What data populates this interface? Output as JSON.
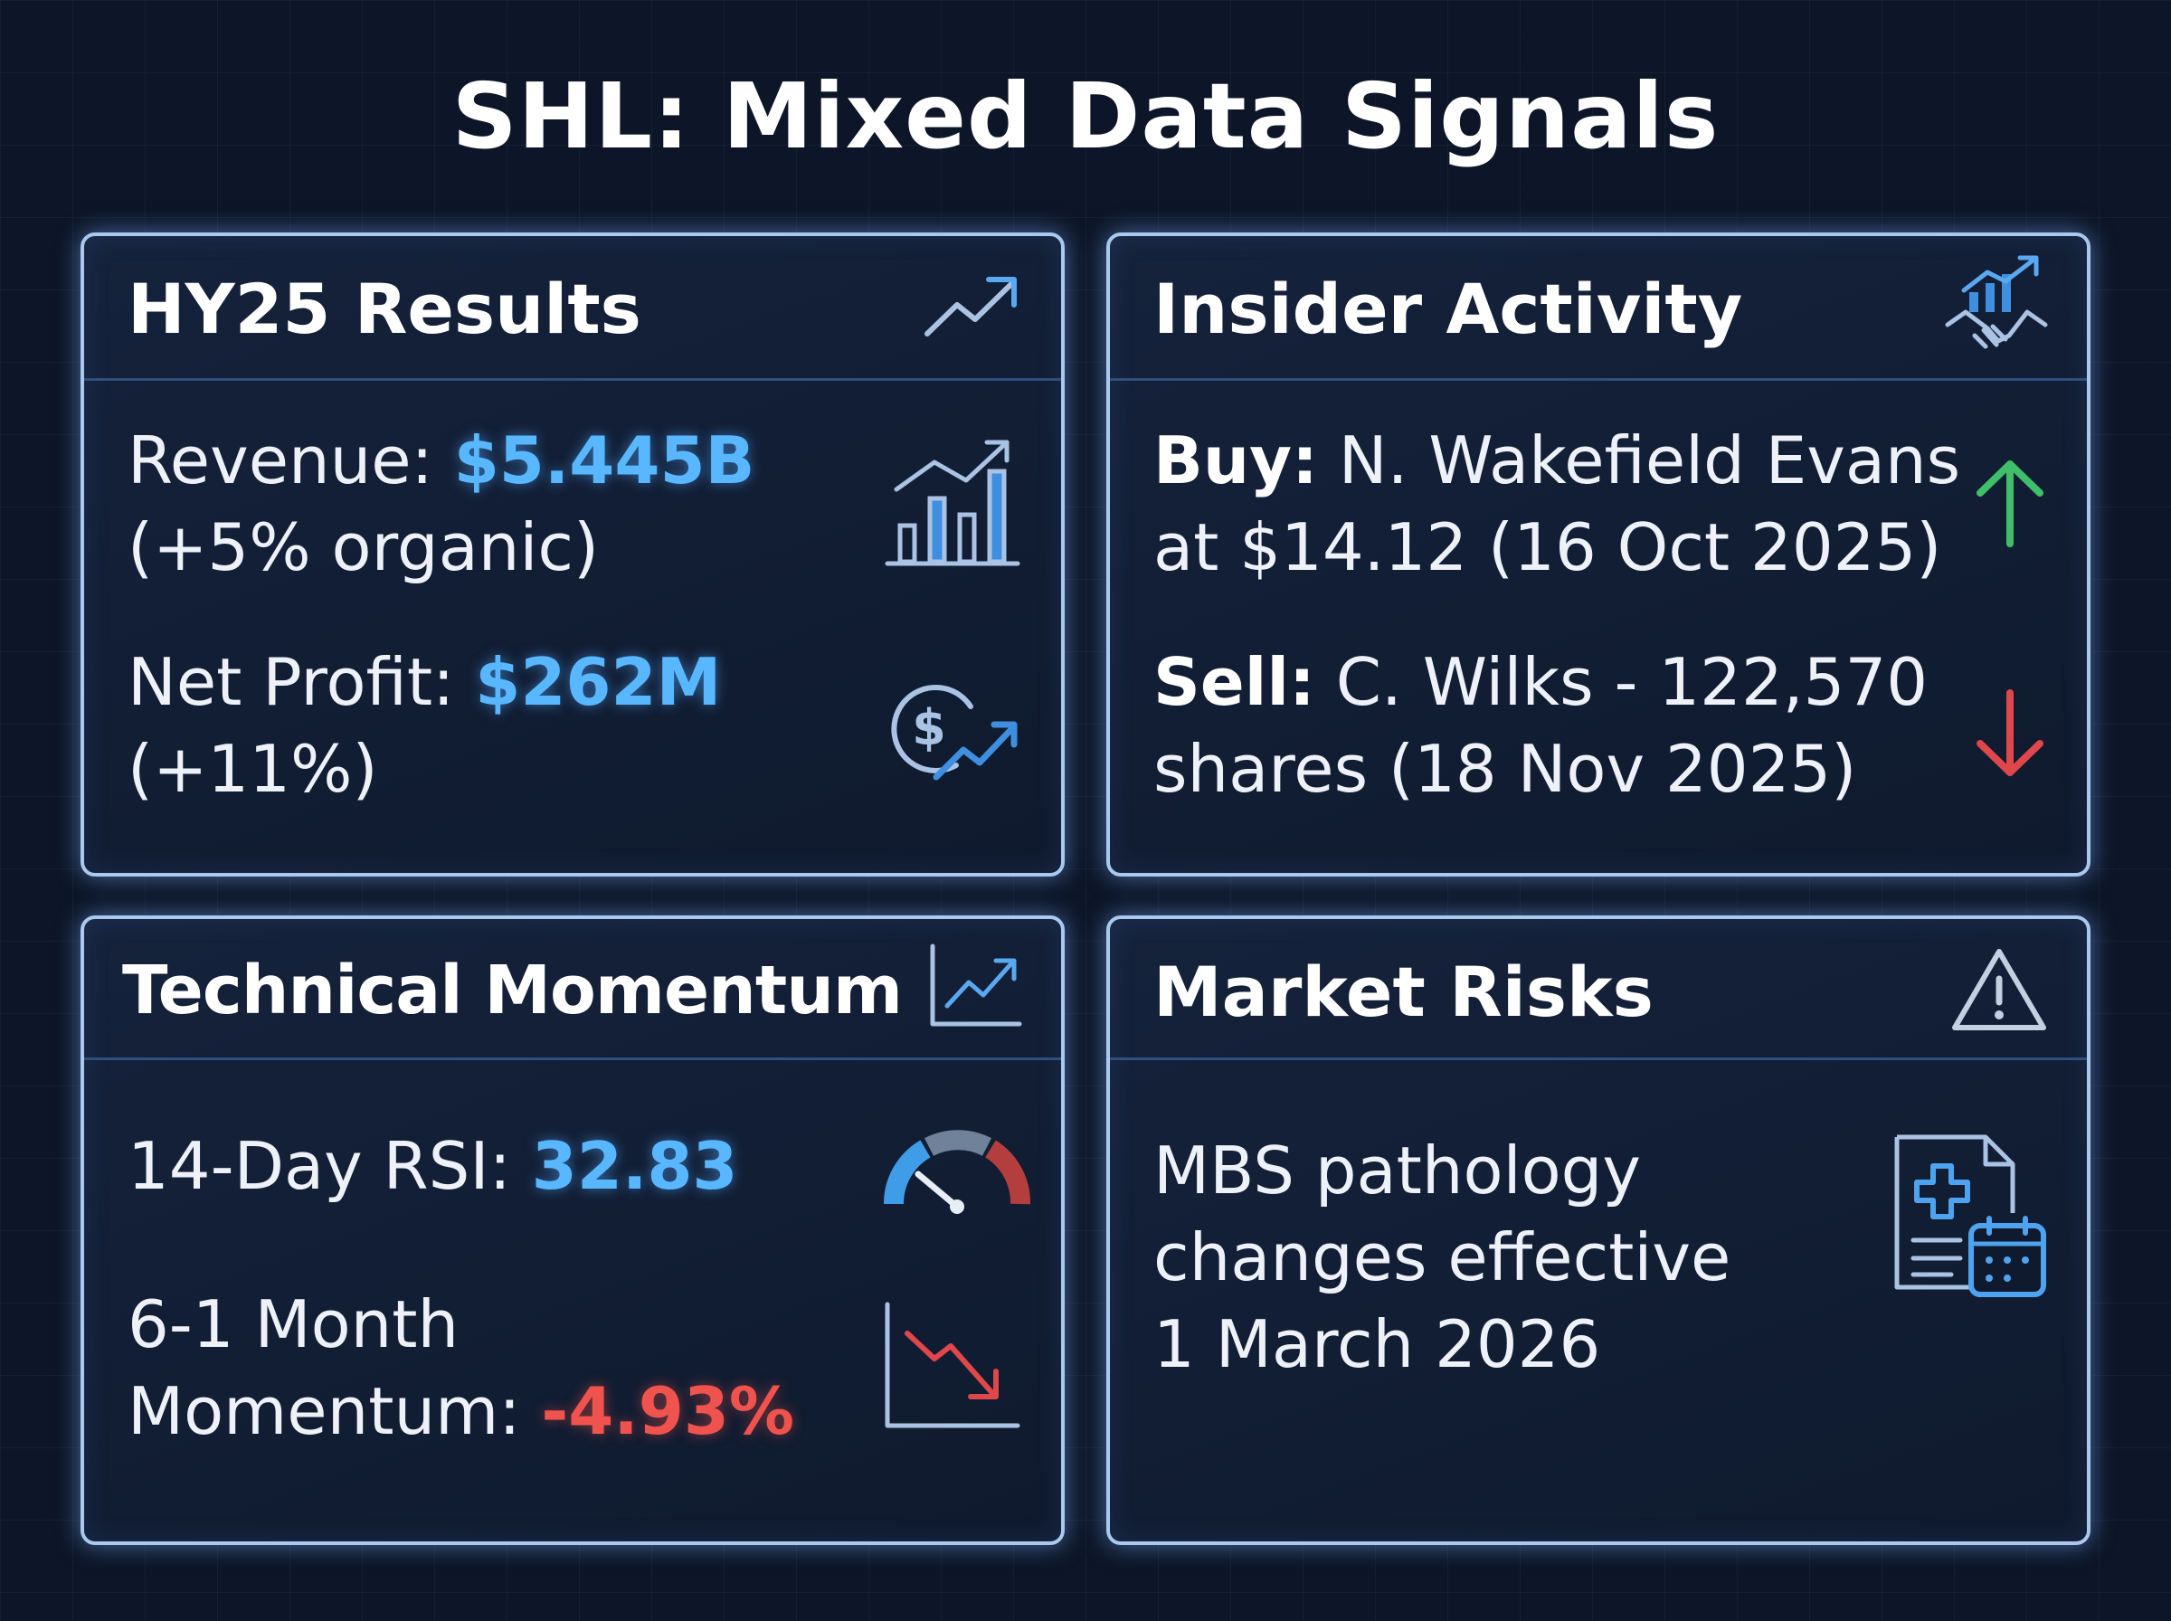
{
  "title": "SHL: Mixed Data Signals",
  "cards": {
    "hy25": {
      "title": "HY25 Results",
      "icon": "trend-up-icon",
      "revenue_label": "Revenue: ",
      "revenue_value": "$5.445B",
      "revenue_note": "(+5% organic)",
      "revenue_icon": "bar-chart-growth-icon",
      "profit_label": "Net Profit: ",
      "profit_value": "$262M",
      "profit_note": "(+11%)",
      "profit_icon": "dollar-growth-icon"
    },
    "insider": {
      "title": "Insider Activity",
      "icon": "handshake-growth-icon",
      "buy_label": "Buy:",
      "buy_line1": " N. Wakefield Evans",
      "buy_line2": "at $14.12 (16 Oct 2025)",
      "buy_icon": "arrow-up-icon",
      "sell_label": "Sell:",
      "sell_line1": " C. Wilks - 122,570",
      "sell_line2": "shares (18 Nov 2025)",
      "sell_icon": "arrow-down-icon"
    },
    "technical": {
      "title": "Technical Momentum",
      "icon": "line-chart-up-icon",
      "rsi_label": "14-Day RSI: ",
      "rsi_value": "32.83",
      "rsi_icon": "gauge-icon",
      "momentum_line1": "6-1 Month",
      "momentum_label": "Momentum: ",
      "momentum_value": "-4.93%",
      "momentum_icon": "line-chart-down-icon"
    },
    "risks": {
      "title": "Market Risks",
      "icon": "warning-icon",
      "line1": "MBS pathology",
      "line2": "changes effective",
      "line3": "1 March 2026",
      "doc_icon": "medical-document-calendar-icon"
    }
  },
  "colors": {
    "background": "#0d1628",
    "card_border": "#a9c9ee",
    "highlight_blue": "#58b7ff",
    "highlight_red": "#f0534e",
    "arrow_up": "#3fbf6a",
    "arrow_down": "#e0474a"
  }
}
